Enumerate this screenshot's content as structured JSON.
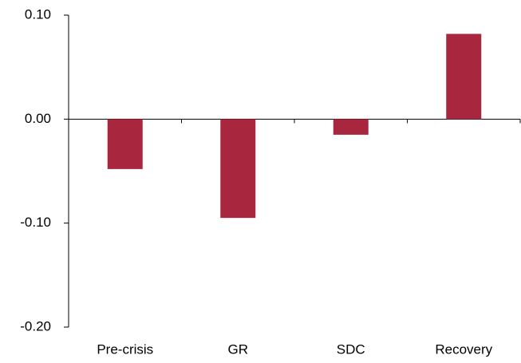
{
  "chart_data": {
    "type": "bar",
    "categories": [
      "Pre-crisis",
      "GR",
      "SDC",
      "Recovery"
    ],
    "values": [
      -0.048,
      -0.095,
      -0.015,
      0.082
    ],
    "color": "#a8263e",
    "ylim": [
      -0.2,
      0.1
    ],
    "yticks": [
      {
        "value": 0.1,
        "label": "0.10"
      },
      {
        "value": 0,
        "label": "0.00"
      },
      {
        "value": -0.1,
        "label": "-0.10"
      },
      {
        "value": -0.2,
        "label": "-0.20"
      }
    ],
    "grid": false
  }
}
